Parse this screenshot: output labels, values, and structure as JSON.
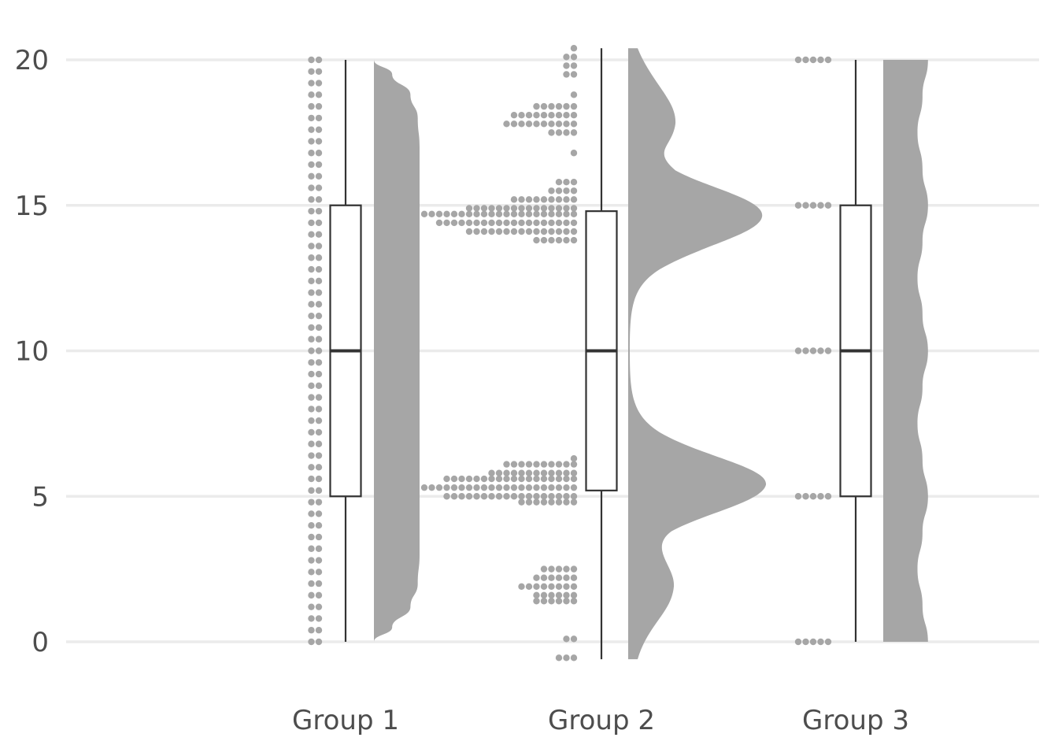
{
  "chart_data": {
    "type": "raincloud",
    "title": "",
    "xlabel": "",
    "ylabel": "",
    "ylim": [
      -0.6,
      20.4
    ],
    "yticks": [
      0,
      5,
      10,
      15,
      20
    ],
    "grid": "horizontal",
    "categories": [
      "Group 1",
      "Group 2",
      "Group 3"
    ],
    "colors": {
      "dots": "#a6a6a6",
      "density": "#a6a6a6",
      "box_fill": "#ffffff",
      "box_stroke": "#333333",
      "grid": "#ebebeb",
      "text": "#4d4d4d"
    },
    "groups": [
      {
        "name": "Group 1",
        "box": {
          "min": 0,
          "q1": 5,
          "median": 10,
          "q3": 15,
          "max": 20
        },
        "dots": [
          {
            "y": 0,
            "n": 2
          },
          {
            "y": 0.4,
            "n": 2
          },
          {
            "y": 0.8,
            "n": 2
          },
          {
            "y": 1.2,
            "n": 2
          },
          {
            "y": 1.6,
            "n": 2
          },
          {
            "y": 2.0,
            "n": 2
          },
          {
            "y": 2.4,
            "n": 2
          },
          {
            "y": 2.8,
            "n": 2
          },
          {
            "y": 3.2,
            "n": 2
          },
          {
            "y": 3.6,
            "n": 2
          },
          {
            "y": 4.0,
            "n": 2
          },
          {
            "y": 4.4,
            "n": 2
          },
          {
            "y": 4.8,
            "n": 2
          },
          {
            "y": 5.2,
            "n": 2
          },
          {
            "y": 5.6,
            "n": 2
          },
          {
            "y": 6.0,
            "n": 2
          },
          {
            "y": 6.4,
            "n": 2
          },
          {
            "y": 6.8,
            "n": 2
          },
          {
            "y": 7.2,
            "n": 2
          },
          {
            "y": 7.6,
            "n": 2
          },
          {
            "y": 8.0,
            "n": 2
          },
          {
            "y": 8.4,
            "n": 2
          },
          {
            "y": 8.8,
            "n": 2
          },
          {
            "y": 9.2,
            "n": 2
          },
          {
            "y": 9.6,
            "n": 2
          },
          {
            "y": 10.0,
            "n": 2
          },
          {
            "y": 10.4,
            "n": 2
          },
          {
            "y": 10.8,
            "n": 2
          },
          {
            "y": 11.2,
            "n": 2
          },
          {
            "y": 11.6,
            "n": 2
          },
          {
            "y": 12.0,
            "n": 2
          },
          {
            "y": 12.4,
            "n": 2
          },
          {
            "y": 12.8,
            "n": 2
          },
          {
            "y": 13.2,
            "n": 2
          },
          {
            "y": 13.6,
            "n": 2
          },
          {
            "y": 14.0,
            "n": 2
          },
          {
            "y": 14.4,
            "n": 2
          },
          {
            "y": 14.8,
            "n": 2
          },
          {
            "y": 15.2,
            "n": 2
          },
          {
            "y": 15.6,
            "n": 2
          },
          {
            "y": 16.0,
            "n": 2
          },
          {
            "y": 16.4,
            "n": 2
          },
          {
            "y": 16.8,
            "n": 2
          },
          {
            "y": 17.2,
            "n": 2
          },
          {
            "y": 17.6,
            "n": 2
          },
          {
            "y": 18.0,
            "n": 2
          },
          {
            "y": 18.4,
            "n": 2
          },
          {
            "y": 18.8,
            "n": 2
          },
          {
            "y": 19.2,
            "n": 2
          },
          {
            "y": 19.6,
            "n": 2
          },
          {
            "y": 20.0,
            "n": 2
          }
        ],
        "density": [
          {
            "y": 0,
            "d": 0
          },
          {
            "y": 0.5,
            "d": 0.1
          },
          {
            "y": 1.2,
            "d": 0.2
          },
          {
            "y": 2.0,
            "d": 0.24
          },
          {
            "y": 3.0,
            "d": 0.25
          },
          {
            "y": 10,
            "d": 0.25
          },
          {
            "y": 17.0,
            "d": 0.25
          },
          {
            "y": 18.0,
            "d": 0.24
          },
          {
            "y": 18.8,
            "d": 0.2
          },
          {
            "y": 19.5,
            "d": 0.1
          },
          {
            "y": 20,
            "d": 0
          }
        ]
      },
      {
        "name": "Group 2",
        "box": {
          "min": -0.6,
          "q1": 5.2,
          "median": 10,
          "q3": 14.8,
          "max": 20.4
        },
        "dots": [
          {
            "y": -0.55,
            "n": 3
          },
          {
            "y": 0.1,
            "n": 2
          },
          {
            "y": 1.4,
            "n": 6
          },
          {
            "y": 1.6,
            "n": 6
          },
          {
            "y": 1.9,
            "n": 8
          },
          {
            "y": 2.2,
            "n": 6
          },
          {
            "y": 2.5,
            "n": 5
          },
          {
            "y": 4.8,
            "n": 8
          },
          {
            "y": 5.0,
            "n": 18
          },
          {
            "y": 5.3,
            "n": 21
          },
          {
            "y": 5.6,
            "n": 18
          },
          {
            "y": 5.8,
            "n": 12
          },
          {
            "y": 6.1,
            "n": 10
          },
          {
            "y": 6.3,
            "n": 1
          },
          {
            "y": 13.8,
            "n": 6
          },
          {
            "y": 14.1,
            "n": 15
          },
          {
            "y": 14.4,
            "n": 19
          },
          {
            "y": 14.7,
            "n": 21
          },
          {
            "y": 14.9,
            "n": 15
          },
          {
            "y": 15.2,
            "n": 9
          },
          {
            "y": 15.5,
            "n": 4
          },
          {
            "y": 15.8,
            "n": 3
          },
          {
            "y": 16.8,
            "n": 1
          },
          {
            "y": 17.5,
            "n": 4
          },
          {
            "y": 17.8,
            "n": 10
          },
          {
            "y": 18.1,
            "n": 9
          },
          {
            "y": 18.4,
            "n": 6
          },
          {
            "y": 18.8,
            "n": 1
          },
          {
            "y": 19.5,
            "n": 2
          },
          {
            "y": 19.8,
            "n": 2
          },
          {
            "y": 20.1,
            "n": 2
          },
          {
            "y": 20.4,
            "n": 1
          }
        ]
      },
      {
        "name": "Group 3",
        "box": {
          "min": 0,
          "q1": 5,
          "median": 10,
          "q3": 15,
          "max": 20
        },
        "dots": [
          {
            "y": 0,
            "n": 5
          },
          {
            "y": 5,
            "n": 5
          },
          {
            "y": 10,
            "n": 5
          },
          {
            "y": 15,
            "n": 5
          },
          {
            "y": 20,
            "n": 5
          }
        ],
        "density": [
          {
            "y": 0,
            "d": 0.98
          },
          {
            "y": 1.25,
            "d": 0.86
          },
          {
            "y": 2.5,
            "d": 0.75
          },
          {
            "y": 3.75,
            "d": 0.86
          },
          {
            "y": 5,
            "d": 0.98
          },
          {
            "y": 6.25,
            "d": 0.86
          },
          {
            "y": 7.5,
            "d": 0.75
          },
          {
            "y": 8.75,
            "d": 0.86
          },
          {
            "y": 10,
            "d": 0.98
          },
          {
            "y": 11.25,
            "d": 0.86
          },
          {
            "y": 12.5,
            "d": 0.75
          },
          {
            "y": 13.75,
            "d": 0.86
          },
          {
            "y": 15,
            "d": 0.98
          },
          {
            "y": 16.25,
            "d": 0.86
          },
          {
            "y": 17.5,
            "d": 0.75
          },
          {
            "y": 18.75,
            "d": 0.86
          },
          {
            "y": 20,
            "d": 0.98
          }
        ]
      }
    ]
  }
}
